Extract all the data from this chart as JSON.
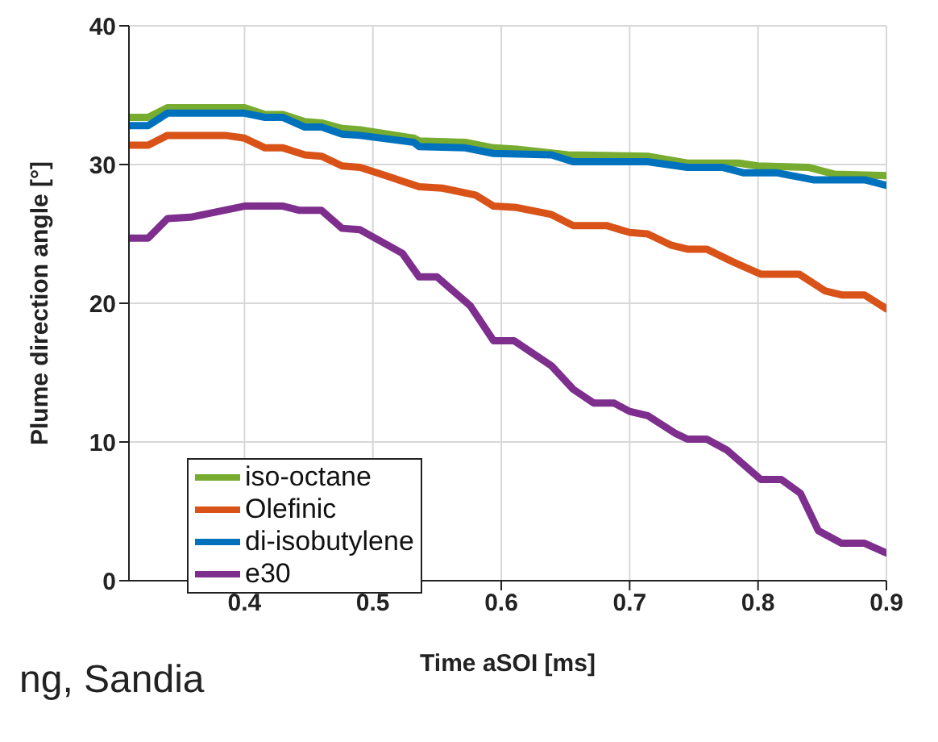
{
  "chart_data": {
    "type": "line",
    "xlabel": "Time aSOI [ms]",
    "ylabel": "Plume direction angle [°]",
    "xlim": [
      0.31,
      0.9
    ],
    "xticks": [
      0.4,
      0.5,
      0.6,
      0.7,
      0.8,
      0.9
    ],
    "ylim": [
      0,
      40
    ],
    "yticks": [
      0,
      10,
      20,
      30,
      40
    ],
    "grid": true,
    "legend": "bottom left",
    "marker": "none",
    "line_style": "solid",
    "annotations": [
      "ng, Sandia"
    ],
    "series": [
      {
        "name": "iso-octane",
        "color": "#77ac30",
        "x": [
          0.31,
          0.325,
          0.34,
          0.4,
          0.416,
          0.43,
          0.447,
          0.46,
          0.476,
          0.49,
          0.532,
          0.536,
          0.572,
          0.594,
          0.612,
          0.652,
          0.714,
          0.745,
          0.785,
          0.8,
          0.839,
          0.86,
          0.9
        ],
        "values": [
          33.4,
          33.4,
          34.1,
          34.1,
          33.6,
          33.6,
          33.1,
          33.0,
          32.6,
          32.5,
          31.9,
          31.7,
          31.6,
          31.2,
          31.1,
          30.7,
          30.6,
          30.1,
          30.1,
          29.9,
          29.8,
          29.3,
          29.2
        ]
      },
      {
        "name": "Olefinic",
        "color": "#d95319",
        "x": [
          0.31,
          0.325,
          0.34,
          0.385,
          0.4,
          0.416,
          0.43,
          0.447,
          0.46,
          0.476,
          0.49,
          0.51,
          0.536,
          0.554,
          0.58,
          0.594,
          0.612,
          0.639,
          0.656,
          0.682,
          0.7,
          0.714,
          0.732,
          0.745,
          0.76,
          0.78,
          0.802,
          0.832,
          0.852,
          0.865,
          0.883,
          0.9
        ],
        "values": [
          31.4,
          31.4,
          32.1,
          32.1,
          31.9,
          31.2,
          31.2,
          30.7,
          30.6,
          29.9,
          29.8,
          29.2,
          28.4,
          28.3,
          27.8,
          27.0,
          26.9,
          26.4,
          25.6,
          25.6,
          25.1,
          25.0,
          24.2,
          23.9,
          23.9,
          23.0,
          22.1,
          22.1,
          20.9,
          20.6,
          20.6,
          19.6
        ]
      },
      {
        "name": "di-isobutylene",
        "color": "#0072bd",
        "x": [
          0.31,
          0.325,
          0.34,
          0.4,
          0.416,
          0.43,
          0.447,
          0.46,
          0.476,
          0.49,
          0.532,
          0.536,
          0.572,
          0.594,
          0.639,
          0.656,
          0.714,
          0.745,
          0.772,
          0.789,
          0.815,
          0.843,
          0.883,
          0.9
        ],
        "values": [
          32.8,
          32.8,
          33.7,
          33.7,
          33.4,
          33.4,
          32.7,
          32.7,
          32.2,
          32.1,
          31.6,
          31.3,
          31.2,
          30.8,
          30.7,
          30.2,
          30.2,
          29.8,
          29.8,
          29.4,
          29.4,
          28.9,
          28.9,
          28.5
        ]
      },
      {
        "name": "e30",
        "color": "#7e2f8e",
        "x": [
          0.31,
          0.325,
          0.34,
          0.358,
          0.4,
          0.43,
          0.443,
          0.46,
          0.476,
          0.49,
          0.523,
          0.536,
          0.55,
          0.576,
          0.594,
          0.61,
          0.639,
          0.656,
          0.672,
          0.688,
          0.7,
          0.714,
          0.736,
          0.745,
          0.76,
          0.776,
          0.802,
          0.818,
          0.833,
          0.847,
          0.865,
          0.883,
          0.9
        ],
        "values": [
          24.7,
          24.7,
          26.1,
          26.2,
          27.0,
          27.0,
          26.7,
          26.7,
          25.4,
          25.3,
          23.6,
          21.9,
          21.9,
          19.8,
          17.3,
          17.3,
          15.5,
          13.8,
          12.8,
          12.8,
          12.2,
          11.9,
          10.6,
          10.2,
          10.2,
          9.4,
          7.3,
          7.3,
          6.3,
          3.6,
          2.7,
          2.7,
          2.0
        ]
      }
    ]
  }
}
